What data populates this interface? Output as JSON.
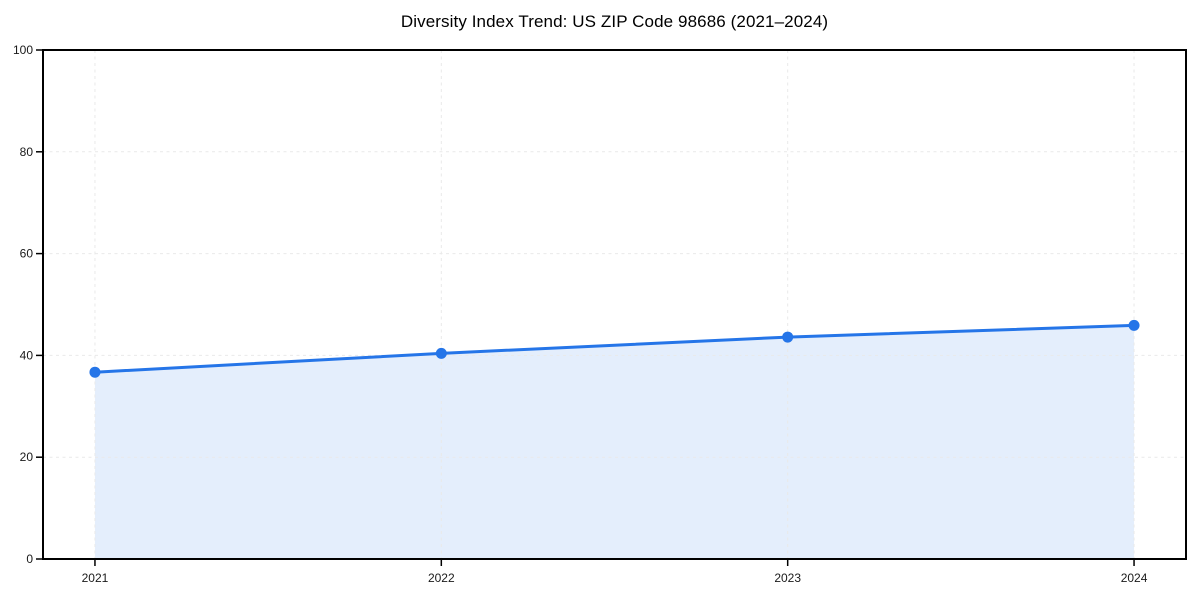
{
  "chart_data": {
    "type": "line",
    "title": "Diversity Index Trend: US ZIP Code 98686 (2021–2024)",
    "x": [
      2021,
      2022,
      2023,
      2024
    ],
    "series": [
      {
        "name": "Diversity Index",
        "values": [
          36.7,
          40.4,
          43.6,
          45.9
        ]
      }
    ],
    "xlabel": "",
    "ylabel": "",
    "ylim": [
      0,
      100
    ],
    "yticks": [
      0,
      20,
      40,
      60,
      80,
      100
    ],
    "xticks": [
      2021,
      2022,
      2023,
      2024
    ],
    "x_range": [
      2020.85,
      2024.15
    ],
    "grid": true,
    "grid_style": "dashed",
    "legend": "none",
    "area_fill": true,
    "markers": true,
    "colors": {
      "line": "#2575e8",
      "marker": "#2575e8",
      "fill": "rgba(37,117,232,0.12)",
      "grid": "#e9e9e9",
      "axis": "#000000",
      "tick_label": "#1a1a1a",
      "background": "#ffffff"
    }
  }
}
